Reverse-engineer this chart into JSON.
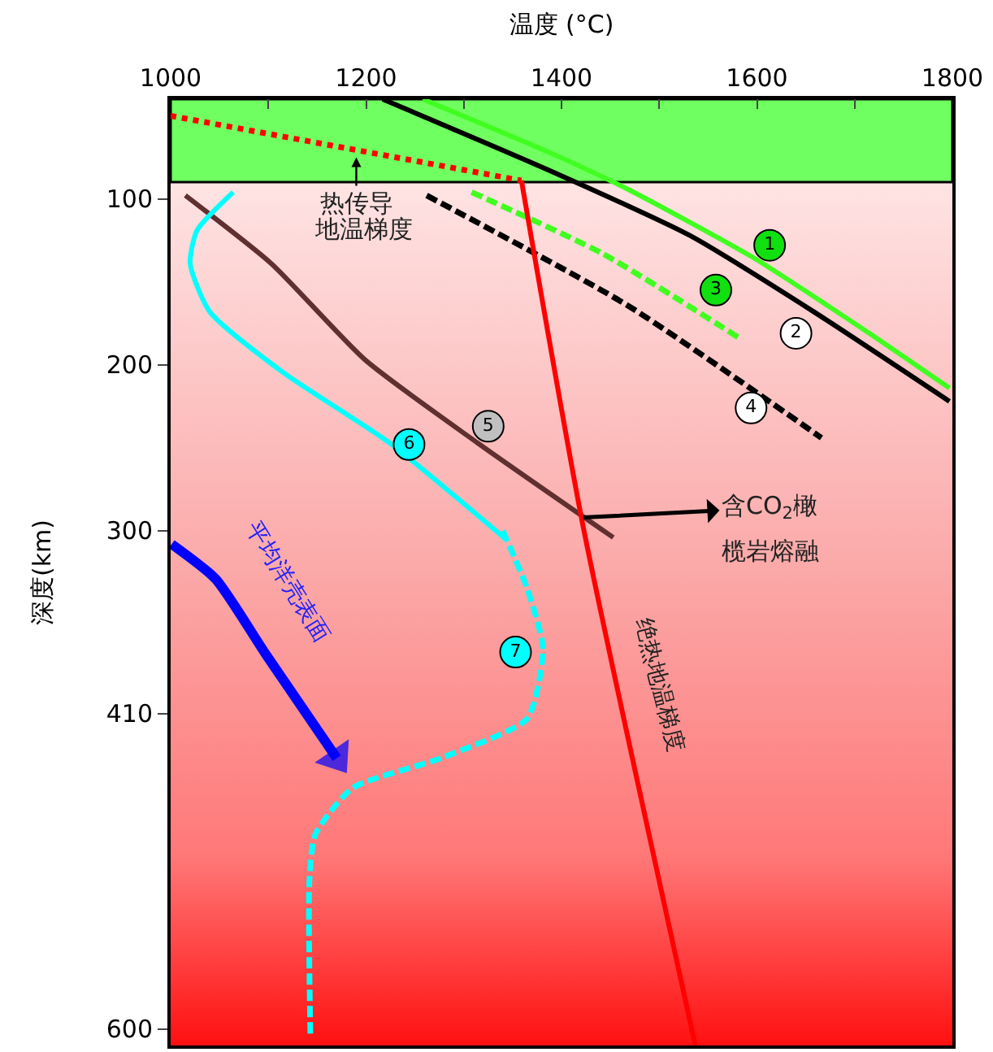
{
  "chart_data": {
    "type": "line",
    "xlabel": "温度 (°C)",
    "ylabel": "深度(km)",
    "xlim": [
      1000,
      1800
    ],
    "xticks": [
      1000,
      {
        "value": 1100,
        "label": null
      },
      1200,
      {
        "value": 1300,
        "label": null
      },
      1400,
      {
        "value": 1500,
        "label": null
      },
      1600,
      {
        "value": 1700,
        "label": null
      },
      1800
    ],
    "ylim": [
      610,
      40
    ],
    "yticks": [
      100,
      200,
      300,
      410,
      600
    ],
    "grid": false,
    "marker": "none",
    "bands": [
      {
        "axis": "y",
        "from": 40,
        "to": 90,
        "color": "#70ff60"
      }
    ],
    "series": [
      {
        "color": "#40ff20",
        "line_style": "solid",
        "x": [
          1258,
          1391,
          1467,
          1595,
          1715,
          1797
        ],
        "values": [
          40,
          73,
          94,
          135,
          181,
          214
        ]
      },
      {
        "color": "#000000",
        "line_style": "solid",
        "x": [
          1217,
          1384,
          1531,
          1658,
          1797
        ],
        "values": [
          40,
          82,
          122,
          168,
          222
        ]
      },
      {
        "color": "#40ff20",
        "line_style": "dashed",
        "x": [
          1308,
          1442,
          1585
        ],
        "values": [
          96,
          133,
          185
        ]
      },
      {
        "color": "#000000",
        "line_style": "dashed",
        "x": [
          1262,
          1467,
          1666
        ],
        "values": [
          98,
          164,
          244
        ]
      },
      {
        "color": "#603030",
        "line_style": "solid",
        "x": [
          1015,
          1103,
          1199,
          1314,
          1453
        ],
        "values": [
          98,
          139,
          197,
          247,
          304
        ]
      },
      {
        "color": "#00ffff",
        "line_style": "solid",
        "x": [
          1064,
          1027,
          1020,
          1040,
          1116,
          1224,
          1343
        ],
        "values": [
          96,
          119,
          139,
          168,
          205,
          247,
          305
        ]
      },
      {
        "color": "#00ffff",
        "line_style": "dashed",
        "x": [
          1340,
          1365,
          1381,
          1365,
          1276,
          1186,
          1148,
          1142,
          1143
        ],
        "values": [
          300,
          335,
          371,
          413,
          437,
          455,
          483,
          511,
          603
        ]
      },
      {
        "color": "#ff0000",
        "line_style": "dotted",
        "x": [
          1000,
          1359
        ],
        "values": [
          50,
          89
        ]
      },
      {
        "color": "#ff0000",
        "line_style": "solid",
        "x": [
          1359,
          1422,
          1537
        ],
        "values": [
          89,
          297,
          610
        ]
      },
      {
        "color": "#0000ff",
        "line_style": "solid",
        "x": [
          1001,
          1046,
          1097,
          1170
        ],
        "values": [
          308,
          329,
          374,
          437
        ]
      }
    ],
    "annotations": [
      {
        "text": "1",
        "x": 1613,
        "y": 128
      },
      {
        "text": "2",
        "x": 1640,
        "y": 181
      },
      {
        "text": "3",
        "x": 1558,
        "y": 155
      },
      {
        "text": "4",
        "x": 1594,
        "y": 226
      },
      {
        "text": "5",
        "x": 1325,
        "y": 237
      },
      {
        "text": "6",
        "x": 1244,
        "y": 248
      },
      {
        "text": "7",
        "x": 1353,
        "y": 373
      },
      {
        "text": "热传导",
        "x": 1190,
        "y": 75
      },
      "地温梯度",
      {
        "text": "含CO$_{2}$橄",
        "x": 1422,
        "y": 292
      },
      "榄岩熔融",
      "绝热地温梯度",
      "平均洋壳表面"
    ]
  }
}
